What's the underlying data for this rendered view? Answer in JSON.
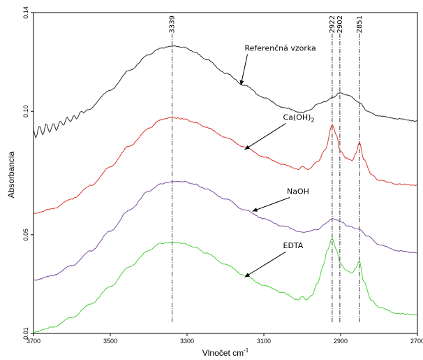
{
  "chart_data": {
    "type": "line",
    "xlabel": "Vlnočet cm",
    "xlabel_sup": "-1",
    "ylabel": "Absorbancia",
    "xlim": [
      3700,
      2700
    ],
    "ylim": [
      0.01,
      0.14
    ],
    "x_ticks": [
      {
        "value": 3700,
        "label": "3700"
      },
      {
        "value": 3500,
        "label": "3500"
      },
      {
        "value": 3300,
        "label": "3300"
      },
      {
        "value": 3100,
        "label": "3100"
      },
      {
        "value": 2900,
        "label": "2900"
      },
      {
        "value": 2700,
        "label": "2700"
      }
    ],
    "y_ticks": [
      {
        "value": 0.01,
        "label": "0.01"
      },
      {
        "value": 0.05,
        "label": "0.05"
      },
      {
        "value": 0.1,
        "label": "0.10"
      },
      {
        "value": 0.14,
        "label": "0.14"
      }
    ],
    "annotations": [
      {
        "x": 3339,
        "label": "3339"
      },
      {
        "x": 2922,
        "label": "2922"
      },
      {
        "x": 2902,
        "label": "2902"
      },
      {
        "x": 2851,
        "label": "2851"
      }
    ],
    "series": [
      {
        "name": "Referenčná vzorka",
        "color": "#2b2b2b",
        "noise_below": 3560,
        "x": [
          3700,
          3650,
          3600,
          3560,
          3500,
          3450,
          3400,
          3370,
          3339,
          3310,
          3280,
          3250,
          3200,
          3150,
          3100,
          3050,
          3000,
          2980,
          2960,
          2940,
          2922,
          2902,
          2880,
          2851,
          2830,
          2800,
          2750,
          2700
        ],
        "y": [
          0.0915,
          0.0935,
          0.097,
          0.1005,
          0.1085,
          0.1165,
          0.123,
          0.1255,
          0.1265,
          0.126,
          0.124,
          0.121,
          0.1155,
          0.1105,
          0.1055,
          0.1015,
          0.0995,
          0.1005,
          0.103,
          0.104,
          0.1055,
          0.1075,
          0.1065,
          0.1035,
          0.1,
          0.098,
          0.097,
          0.096
        ]
      },
      {
        "name": "Ca(OH)₂",
        "color": "#d9362c",
        "x": [
          3700,
          3650,
          3600,
          3550,
          3500,
          3450,
          3400,
          3370,
          3339,
          3310,
          3280,
          3250,
          3200,
          3150,
          3100,
          3050,
          3010,
          3000,
          2985,
          2960,
          2940,
          2922,
          2910,
          2902,
          2885,
          2870,
          2860,
          2851,
          2840,
          2820,
          2800,
          2750,
          2700
        ],
        "y": [
          0.0585,
          0.0605,
          0.0645,
          0.07,
          0.0775,
          0.086,
          0.093,
          0.0965,
          0.0975,
          0.097,
          0.0955,
          0.0935,
          0.0895,
          0.0855,
          0.0815,
          0.0785,
          0.0765,
          0.0775,
          0.0765,
          0.0795,
          0.0845,
          0.0945,
          0.09,
          0.084,
          0.081,
          0.08,
          0.083,
          0.0875,
          0.0805,
          0.0745,
          0.072,
          0.0705,
          0.07
        ]
      },
      {
        "name": "NaOH",
        "color": "#7a4f9e",
        "x": [
          3700,
          3650,
          3600,
          3550,
          3500,
          3450,
          3400,
          3370,
          3339,
          3310,
          3280,
          3250,
          3200,
          3150,
          3100,
          3050,
          3000,
          2960,
          2940,
          2922,
          2902,
          2880,
          2860,
          2851,
          2830,
          2800,
          2750,
          2700
        ],
        "y": [
          0.0315,
          0.0335,
          0.0375,
          0.0435,
          0.0515,
          0.06,
          0.0675,
          0.0705,
          0.0715,
          0.0715,
          0.0705,
          0.0685,
          0.0645,
          0.06,
          0.0565,
          0.0535,
          0.051,
          0.052,
          0.0545,
          0.0565,
          0.0555,
          0.0535,
          0.0525,
          0.052,
          0.0495,
          0.046,
          0.0435,
          0.0425
        ]
      },
      {
        "name": "EDTA",
        "color": "#4ccf3c",
        "x": [
          3700,
          3650,
          3600,
          3550,
          3500,
          3450,
          3400,
          3370,
          3339,
          3310,
          3280,
          3250,
          3200,
          3150,
          3100,
          3050,
          3010,
          3000,
          2990,
          2975,
          2960,
          2945,
          2935,
          2922,
          2910,
          2902,
          2885,
          2870,
          2860,
          2851,
          2840,
          2820,
          2800,
          2750,
          2700
        ],
        "y": [
          0.0105,
          0.0125,
          0.0165,
          0.022,
          0.029,
          0.037,
          0.0435,
          0.0465,
          0.047,
          0.0465,
          0.045,
          0.0425,
          0.038,
          0.0335,
          0.0295,
          0.0265,
          0.0235,
          0.025,
          0.0235,
          0.0255,
          0.0305,
          0.0375,
          0.0435,
          0.0485,
          0.0435,
          0.0385,
          0.0355,
          0.0345,
          0.0365,
          0.0395,
          0.031,
          0.0235,
          0.0205,
          0.018,
          0.0175
        ]
      }
    ],
    "series_labels": [
      {
        "text": "Referenčná vzorka",
        "x": 3150,
        "y": 0.1245,
        "arrow_to": [
          3160,
          0.1105
        ]
      },
      {
        "text": "Ca(OH)",
        "sub": "2",
        "x": 3050,
        "y": 0.0965,
        "arrow_to": [
          3150,
          0.0845
        ]
      },
      {
        "text": "NaOH",
        "x": 3040,
        "y": 0.0665,
        "arrow_to": [
          3130,
          0.0595
        ]
      },
      {
        "text": "EDTA",
        "x": 3050,
        "y": 0.0445,
        "arrow_to": [
          3150,
          0.0328
        ]
      }
    ]
  }
}
